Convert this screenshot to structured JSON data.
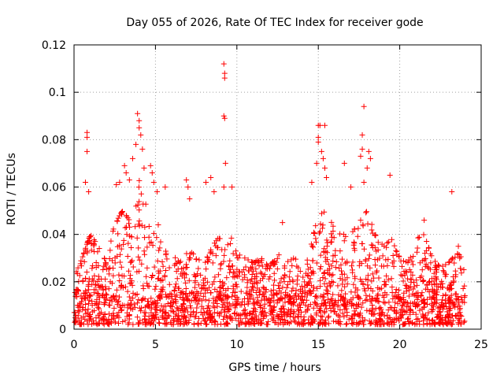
{
  "chart_data": {
    "type": "scatter",
    "title": "Day 055 of 2026, Rate Of TEC Index for receiver gode",
    "xlabel": "GPS time / hours",
    "ylabel": "ROTI / TECUs",
    "xlim": [
      0,
      25
    ],
    "ylim": [
      0,
      0.12
    ],
    "xticks": [
      0,
      5,
      10,
      15,
      20,
      25
    ],
    "yticks": [
      0,
      0.02,
      0.04,
      0.06,
      0.08,
      0.1,
      0.12
    ],
    "grid": true,
    "marker": "+",
    "series": [
      {
        "name": "ROTI",
        "color": "#ff0000",
        "x_range": [
          0,
          24
        ],
        "baseline_envelope": {
          "hours": [
            0,
            0.5,
            1,
            1.5,
            2,
            2.5,
            3,
            3.5,
            4,
            4.5,
            5,
            5.5,
            6,
            6.5,
            7,
            7.5,
            8,
            8.5,
            9,
            9.5,
            10,
            10.5,
            11,
            11.5,
            12,
            12.5,
            13,
            13.5,
            14,
            14.5,
            15,
            15.5,
            16,
            16.5,
            17,
            17.5,
            18,
            18.5,
            19,
            19.5,
            20,
            20.5,
            21,
            21.5,
            22,
            22.5,
            23,
            23.5,
            24
          ],
          "upper": [
            0.022,
            0.03,
            0.04,
            0.035,
            0.028,
            0.045,
            0.05,
            0.045,
            0.065,
            0.05,
            0.048,
            0.04,
            0.032,
            0.028,
            0.035,
            0.03,
            0.028,
            0.035,
            0.04,
            0.045,
            0.032,
            0.03,
            0.028,
            0.03,
            0.026,
            0.032,
            0.028,
            0.03,
            0.028,
            0.035,
            0.048,
            0.05,
            0.042,
            0.04,
            0.04,
            0.045,
            0.05,
            0.04,
            0.035,
            0.038,
            0.03,
            0.028,
            0.038,
            0.04,
            0.03,
            0.026,
            0.028,
            0.032,
            0.03
          ]
        },
        "notable_points": [
          {
            "x": 0.8,
            "y": 0.083
          },
          {
            "x": 0.8,
            "y": 0.081
          },
          {
            "x": 0.8,
            "y": 0.075
          },
          {
            "x": 0.7,
            "y": 0.062
          },
          {
            "x": 0.9,
            "y": 0.058
          },
          {
            "x": 2.6,
            "y": 0.061
          },
          {
            "x": 2.8,
            "y": 0.062
          },
          {
            "x": 3.1,
            "y": 0.069
          },
          {
            "x": 3.2,
            "y": 0.066
          },
          {
            "x": 3.4,
            "y": 0.063
          },
          {
            "x": 3.6,
            "y": 0.072
          },
          {
            "x": 3.9,
            "y": 0.091
          },
          {
            "x": 4.0,
            "y": 0.088
          },
          {
            "x": 4.0,
            "y": 0.085
          },
          {
            "x": 4.1,
            "y": 0.082
          },
          {
            "x": 3.8,
            "y": 0.078
          },
          {
            "x": 4.2,
            "y": 0.076
          },
          {
            "x": 4.3,
            "y": 0.068
          },
          {
            "x": 4.7,
            "y": 0.069
          },
          {
            "x": 4.8,
            "y": 0.066
          },
          {
            "x": 4.9,
            "y": 0.062
          },
          {
            "x": 5.1,
            "y": 0.058
          },
          {
            "x": 5.6,
            "y": 0.06
          },
          {
            "x": 6.9,
            "y": 0.063
          },
          {
            "x": 7.0,
            "y": 0.06
          },
          {
            "x": 7.1,
            "y": 0.055
          },
          {
            "x": 8.1,
            "y": 0.062
          },
          {
            "x": 8.4,
            "y": 0.064
          },
          {
            "x": 8.6,
            "y": 0.058
          },
          {
            "x": 9.2,
            "y": 0.112
          },
          {
            "x": 9.25,
            "y": 0.108
          },
          {
            "x": 9.25,
            "y": 0.106
          },
          {
            "x": 9.2,
            "y": 0.09
          },
          {
            "x": 9.25,
            "y": 0.089
          },
          {
            "x": 9.3,
            "y": 0.07
          },
          {
            "x": 9.2,
            "y": 0.06
          },
          {
            "x": 9.7,
            "y": 0.06
          },
          {
            "x": 12.8,
            "y": 0.045
          },
          {
            "x": 14.6,
            "y": 0.062
          },
          {
            "x": 14.9,
            "y": 0.07
          },
          {
            "x": 15.0,
            "y": 0.086
          },
          {
            "x": 15.1,
            "y": 0.086
          },
          {
            "x": 15.4,
            "y": 0.086
          },
          {
            "x": 15.0,
            "y": 0.081
          },
          {
            "x": 15.0,
            "y": 0.079
          },
          {
            "x": 15.2,
            "y": 0.075
          },
          {
            "x": 15.3,
            "y": 0.072
          },
          {
            "x": 15.4,
            "y": 0.068
          },
          {
            "x": 15.5,
            "y": 0.064
          },
          {
            "x": 16.6,
            "y": 0.07
          },
          {
            "x": 17.0,
            "y": 0.06
          },
          {
            "x": 17.8,
            "y": 0.094
          },
          {
            "x": 17.7,
            "y": 0.082
          },
          {
            "x": 17.7,
            "y": 0.076
          },
          {
            "x": 17.6,
            "y": 0.073
          },
          {
            "x": 18.1,
            "y": 0.075
          },
          {
            "x": 18.2,
            "y": 0.072
          },
          {
            "x": 18.0,
            "y": 0.068
          },
          {
            "x": 17.8,
            "y": 0.062
          },
          {
            "x": 19.4,
            "y": 0.065
          },
          {
            "x": 21.5,
            "y": 0.046
          },
          {
            "x": 23.2,
            "y": 0.058
          },
          {
            "x": 23.6,
            "y": 0.035
          }
        ]
      }
    ]
  }
}
